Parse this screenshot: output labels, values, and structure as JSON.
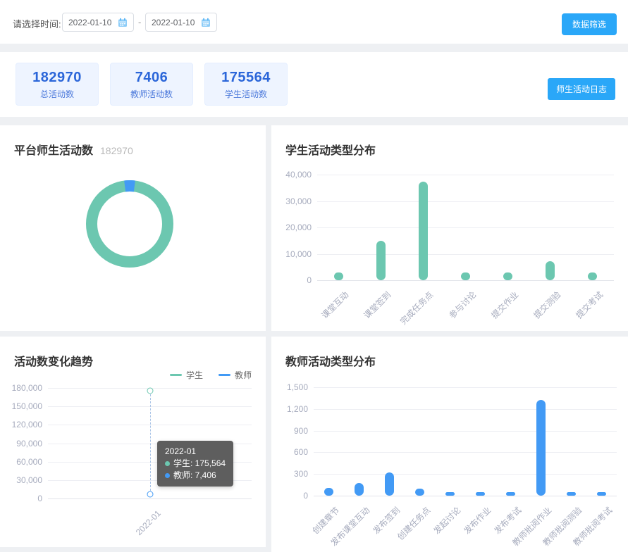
{
  "filter_bar": {
    "label": "请选择时间:",
    "date_start": "2022-01-10",
    "date_end": "2022-01-10",
    "separator": "-",
    "filter_button": "数据筛选"
  },
  "stats": {
    "cards": [
      {
        "value": "182970",
        "label": "总活动数"
      },
      {
        "value": "7406",
        "label": "教师活动数"
      },
      {
        "value": "175564",
        "label": "学生活动数"
      }
    ],
    "log_button": "师生活动日志"
  },
  "colors": {
    "student_teal": "#6cc7b0",
    "teacher_blue": "#429af5",
    "button_blue": "#2aa7f8",
    "grid": "#edeef3",
    "axis": "#e2e4ea",
    "tick_text": "#a6abbd"
  },
  "chart_data": [
    {
      "type": "pie",
      "title": "平台师生活动数",
      "subtitle": "182970",
      "legend_position": "bottom",
      "series": [
        {
          "name": "学生活动数",
          "value": 175564,
          "display": "175564",
          "color": "#6cc7b0"
        },
        {
          "name": "教师活动数",
          "value": 7406,
          "display": "7406",
          "color": "#429af5"
        }
      ]
    },
    {
      "type": "bar",
      "title": "学生活动类型分布",
      "categories": [
        "课堂互动",
        "课堂签到",
        "完成任务点",
        "参与讨论",
        "提交作业",
        "提交测验",
        "提交考试"
      ],
      "values": [
        1800,
        15000,
        37300,
        1400,
        1900,
        7300,
        1000
      ],
      "bar_color": "#6cc7b0",
      "ylim": [
        0,
        40000
      ],
      "yticks": [
        0,
        10000,
        20000,
        30000,
        40000
      ],
      "grid": true
    },
    {
      "type": "line",
      "title": "活动数变化趋势",
      "x": [
        "2022-01"
      ],
      "series": [
        {
          "name": "学生",
          "values": [
            175564
          ],
          "color": "#6cc7b0"
        },
        {
          "name": "教师",
          "values": [
            7406
          ],
          "color": "#429af5"
        }
      ],
      "ylim": [
        0,
        180000
      ],
      "yticks": [
        0,
        30000,
        60000,
        90000,
        120000,
        150000,
        180000
      ],
      "legend_position": "top-right",
      "grid": true,
      "tooltip": {
        "title": "2022-01",
        "items": [
          {
            "label": "学生",
            "value": "175,564",
            "color": "#6cc7b0"
          },
          {
            "label": "教师",
            "value": "7,406",
            "color": "#429af5"
          }
        ]
      }
    },
    {
      "type": "bar",
      "title": "教师活动类型分布",
      "categories": [
        "创建章节",
        "发布课堂互动",
        "发布签到",
        "创建任务点",
        "发起讨论",
        "发布作业",
        "发布考试",
        "教师批阅作业",
        "教师批阅测验",
        "教师批阅考试"
      ],
      "values": [
        105,
        180,
        325,
        100,
        20,
        45,
        20,
        1320,
        35,
        10
      ],
      "bar_color": "#429af5",
      "ylim": [
        0,
        1500
      ],
      "yticks": [
        0,
        300,
        600,
        900,
        1200,
        1500
      ],
      "grid": true
    }
  ]
}
